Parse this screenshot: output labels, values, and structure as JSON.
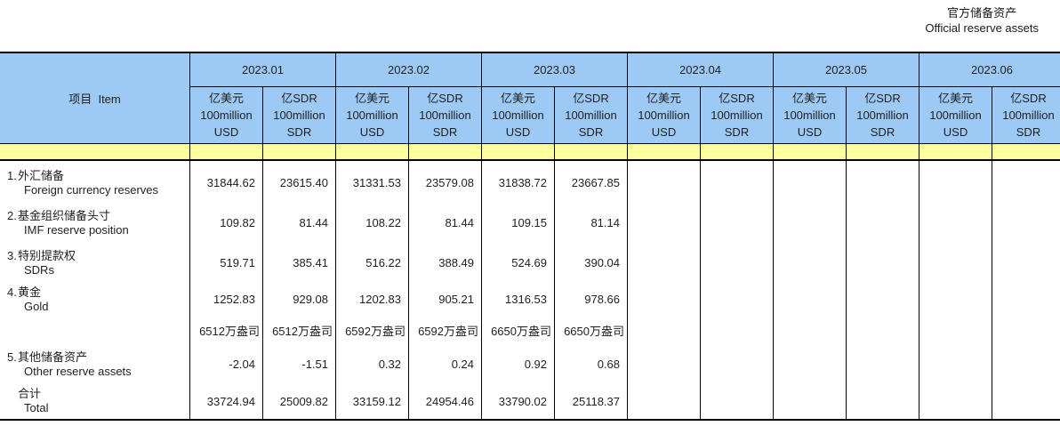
{
  "title": {
    "zh": "官方储备资产",
    "en": "Official reserve assets"
  },
  "colors": {
    "header_blue": "#9DC9F5",
    "band_yellow": "#FFFF9D",
    "border": "#000000",
    "text": "#1F1F1F"
  },
  "table": {
    "item_header": "项目  Item",
    "months": [
      "2023.01",
      "2023.02",
      "2023.03",
      "2023.04",
      "2023.05",
      "2023.06"
    ],
    "unit_usd": {
      "l1": "亿美元",
      "l2": "100million",
      "l3": "USD"
    },
    "unit_sdr": {
      "l1": "亿SDR",
      "l2": "100million",
      "l3": "SDR"
    },
    "rows": [
      {
        "no": "1.",
        "zh": "外汇储备",
        "en": "Foreign currency reserves",
        "values": [
          "31844.62",
          "23615.40",
          "31331.53",
          "23579.08",
          "31838.72",
          "23667.85",
          "",
          "",
          "",
          "",
          "",
          ""
        ]
      },
      {
        "no": "2.",
        "zh": "基金组织储备头寸",
        "en": "IMF reserve position",
        "values": [
          "109.82",
          "81.44",
          "108.22",
          "81.44",
          "109.15",
          "81.14",
          "",
          "",
          "",
          "",
          "",
          ""
        ]
      },
      {
        "no": "3.",
        "zh": "特别提款权",
        "en": "SDRs",
        "values": [
          "519.71",
          "385.41",
          "516.22",
          "388.49",
          "524.69",
          "390.04",
          "",
          "",
          "",
          "",
          "",
          ""
        ]
      },
      {
        "no": "4.",
        "zh": "黄金",
        "en": "Gold",
        "values": [
          "1252.83",
          "929.08",
          "1202.83",
          "905.21",
          "1316.53",
          "978.66",
          "",
          "",
          "",
          "",
          "",
          ""
        ]
      },
      {
        "no": "",
        "zh": "",
        "en": "",
        "values": [
          "6512万盎司",
          "6512万盎司",
          "6592万盎司",
          "6592万盎司",
          "6650万盎司",
          "6650万盎司",
          "",
          "",
          "",
          "",
          "",
          ""
        ]
      },
      {
        "no": "5.",
        "zh": "其他储备资产",
        "en": "Other reserve assets",
        "values": [
          "-2.04",
          "-1.51",
          "0.32",
          "0.24",
          "0.92",
          "0.68",
          "",
          "",
          "",
          "",
          "",
          ""
        ]
      },
      {
        "no": "",
        "zh": "合计",
        "en": "Total",
        "values": [
          "33724.94",
          "25009.82",
          "33159.12",
          "24954.46",
          "33790.02",
          "25118.37",
          "",
          "",
          "",
          "",
          "",
          ""
        ]
      }
    ]
  }
}
